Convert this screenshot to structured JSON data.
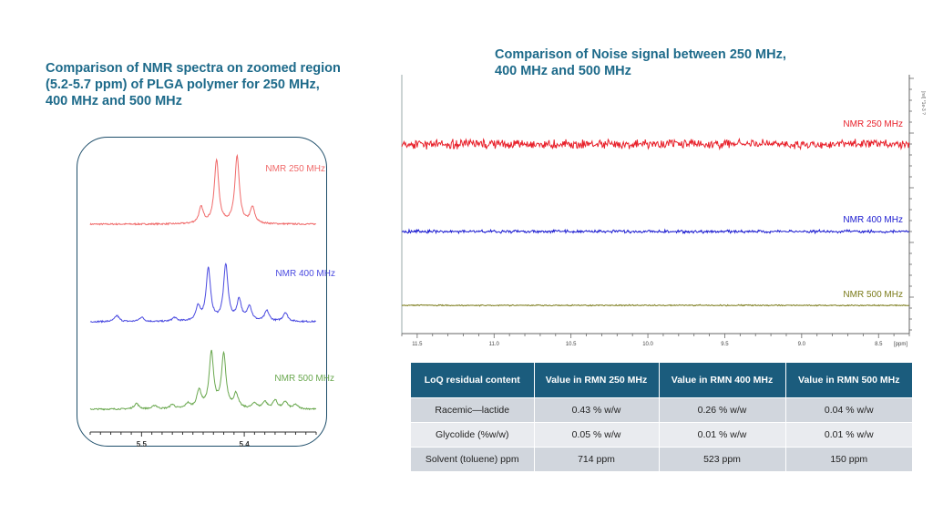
{
  "left_title": {
    "lines": [
      "Comparison of NMR spectra on zoomed region",
      "(5.2-5.7 ppm) of PLGA polymer for 250 MHz,",
      "400 MHz and 500 MHz"
    ]
  },
  "right_title": {
    "lines": [
      "Comparison of Noise signal between 250 MHz,",
      "400 MHz and 500 MHz"
    ]
  },
  "chart_data": [
    {
      "type": "line",
      "xlabel": "",
      "ylabel": "",
      "x_ticks": [
        5.5,
        5.4
      ],
      "xlim": [
        5.55,
        5.33
      ],
      "x_reversed": true,
      "series": [
        {
          "name": "NMR 250 MHz",
          "color": "#f06a6a",
          "peaks": [
            [
              5.442,
              0.22
            ],
            [
              5.427,
              0.87
            ],
            [
              5.407,
              0.92
            ],
            [
              5.392,
              0.22
            ]
          ]
        },
        {
          "name": "NMR 400 MHz",
          "color": "#4a4ae0",
          "peaks": [
            [
              5.524,
              0.08
            ],
            [
              5.5,
              0.06
            ],
            [
              5.468,
              0.05
            ],
            [
              5.445,
              0.18
            ],
            [
              5.435,
              0.7
            ],
            [
              5.418,
              0.75
            ],
            [
              5.405,
              0.28
            ],
            [
              5.395,
              0.2
            ],
            [
              5.378,
              0.14
            ],
            [
              5.36,
              0.12
            ]
          ]
        },
        {
          "name": "NMR 500 MHz",
          "color": "#6aa84f",
          "peaks": [
            [
              5.505,
              0.08
            ],
            [
              5.487,
              0.05
            ],
            [
              5.47,
              0.06
            ],
            [
              5.455,
              0.07
            ],
            [
              5.444,
              0.25
            ],
            [
              5.432,
              0.78
            ],
            [
              5.42,
              0.75
            ],
            [
              5.408,
              0.2
            ],
            [
              5.39,
              0.08
            ],
            [
              5.38,
              0.1
            ],
            [
              5.37,
              0.12
            ],
            [
              5.36,
              0.1
            ],
            [
              5.35,
              0.06
            ]
          ]
        }
      ]
    },
    {
      "type": "line",
      "xlabel": "",
      "ylabel": "",
      "x_tick_labels": [
        "11.5",
        "11.0",
        "10.5",
        "10.0",
        "9.5",
        "9.0",
        "8.5",
        "[ppm]"
      ],
      "x_ticks": [
        11.5,
        11.0,
        10.5,
        10.0,
        9.5,
        9.0,
        8.5
      ],
      "xlim": [
        11.6,
        8.3
      ],
      "x_reversed": true,
      "y_axis_label": "[rel]  *1e-3 ?",
      "series": [
        {
          "name": "NMR 250 MHz",
          "color": "#e8202a",
          "noise_amplitude": 0.1
        },
        {
          "name": "NMR 400 MHz",
          "color": "#1a1ad0",
          "noise_amplitude": 0.03
        },
        {
          "name": "NMR 500 MHz",
          "color": "#7a7a18",
          "noise_amplitude": 0.01
        }
      ]
    }
  ],
  "table": {
    "headers": [
      "LoQ residual content",
      "Value in RMN 250 MHz",
      "Value in RMN 400 MHz",
      "Value in RMN 500 MHz"
    ],
    "rows": [
      [
        "Racemic—lactide",
        "0.43 %  w/w",
        "0.26 %  w/w",
        "0.04 %  w/w"
      ],
      [
        "Glycolide (%w/w)",
        "0.05 %  w/w",
        "0.01 %  w/w",
        "0.01 %  w/w"
      ],
      [
        "Solvent (toluene) ppm",
        "714 ppm",
        "523 ppm",
        "150 ppm"
      ]
    ]
  }
}
